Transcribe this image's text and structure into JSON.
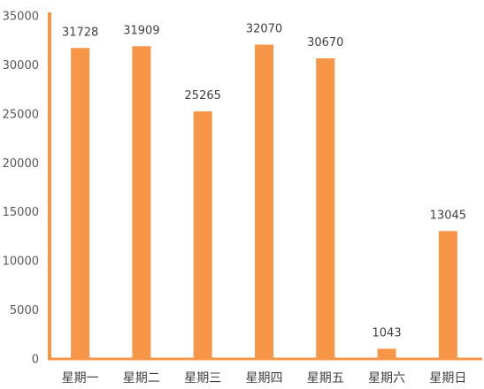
{
  "chart_data": {
    "type": "bar",
    "title": "",
    "xlabel": "",
    "ylabel": "",
    "categories": [
      "星期一",
      "星期二",
      "星期三",
      "星期四",
      "星期五",
      "星期六",
      "星期日"
    ],
    "values": [
      31728,
      31909,
      25265,
      32070,
      30670,
      1043,
      13045
    ],
    "data_labels": [
      "31728",
      "31909",
      "25265",
      "32070",
      "30670",
      "1043",
      "13045"
    ],
    "ylim": [
      0,
      35000
    ],
    "yticks": [
      0,
      5000,
      10000,
      15000,
      20000,
      25000,
      30000,
      35000
    ],
    "ytick_labels": [
      "0",
      "5000",
      "10000",
      "15000",
      "20000",
      "25000",
      "30000",
      "35000"
    ],
    "grid": false,
    "legend": "none",
    "colors": {
      "bar": "#F79646",
      "axis": "#F79646",
      "text": "#404040",
      "tick_text": "#595959"
    }
  }
}
